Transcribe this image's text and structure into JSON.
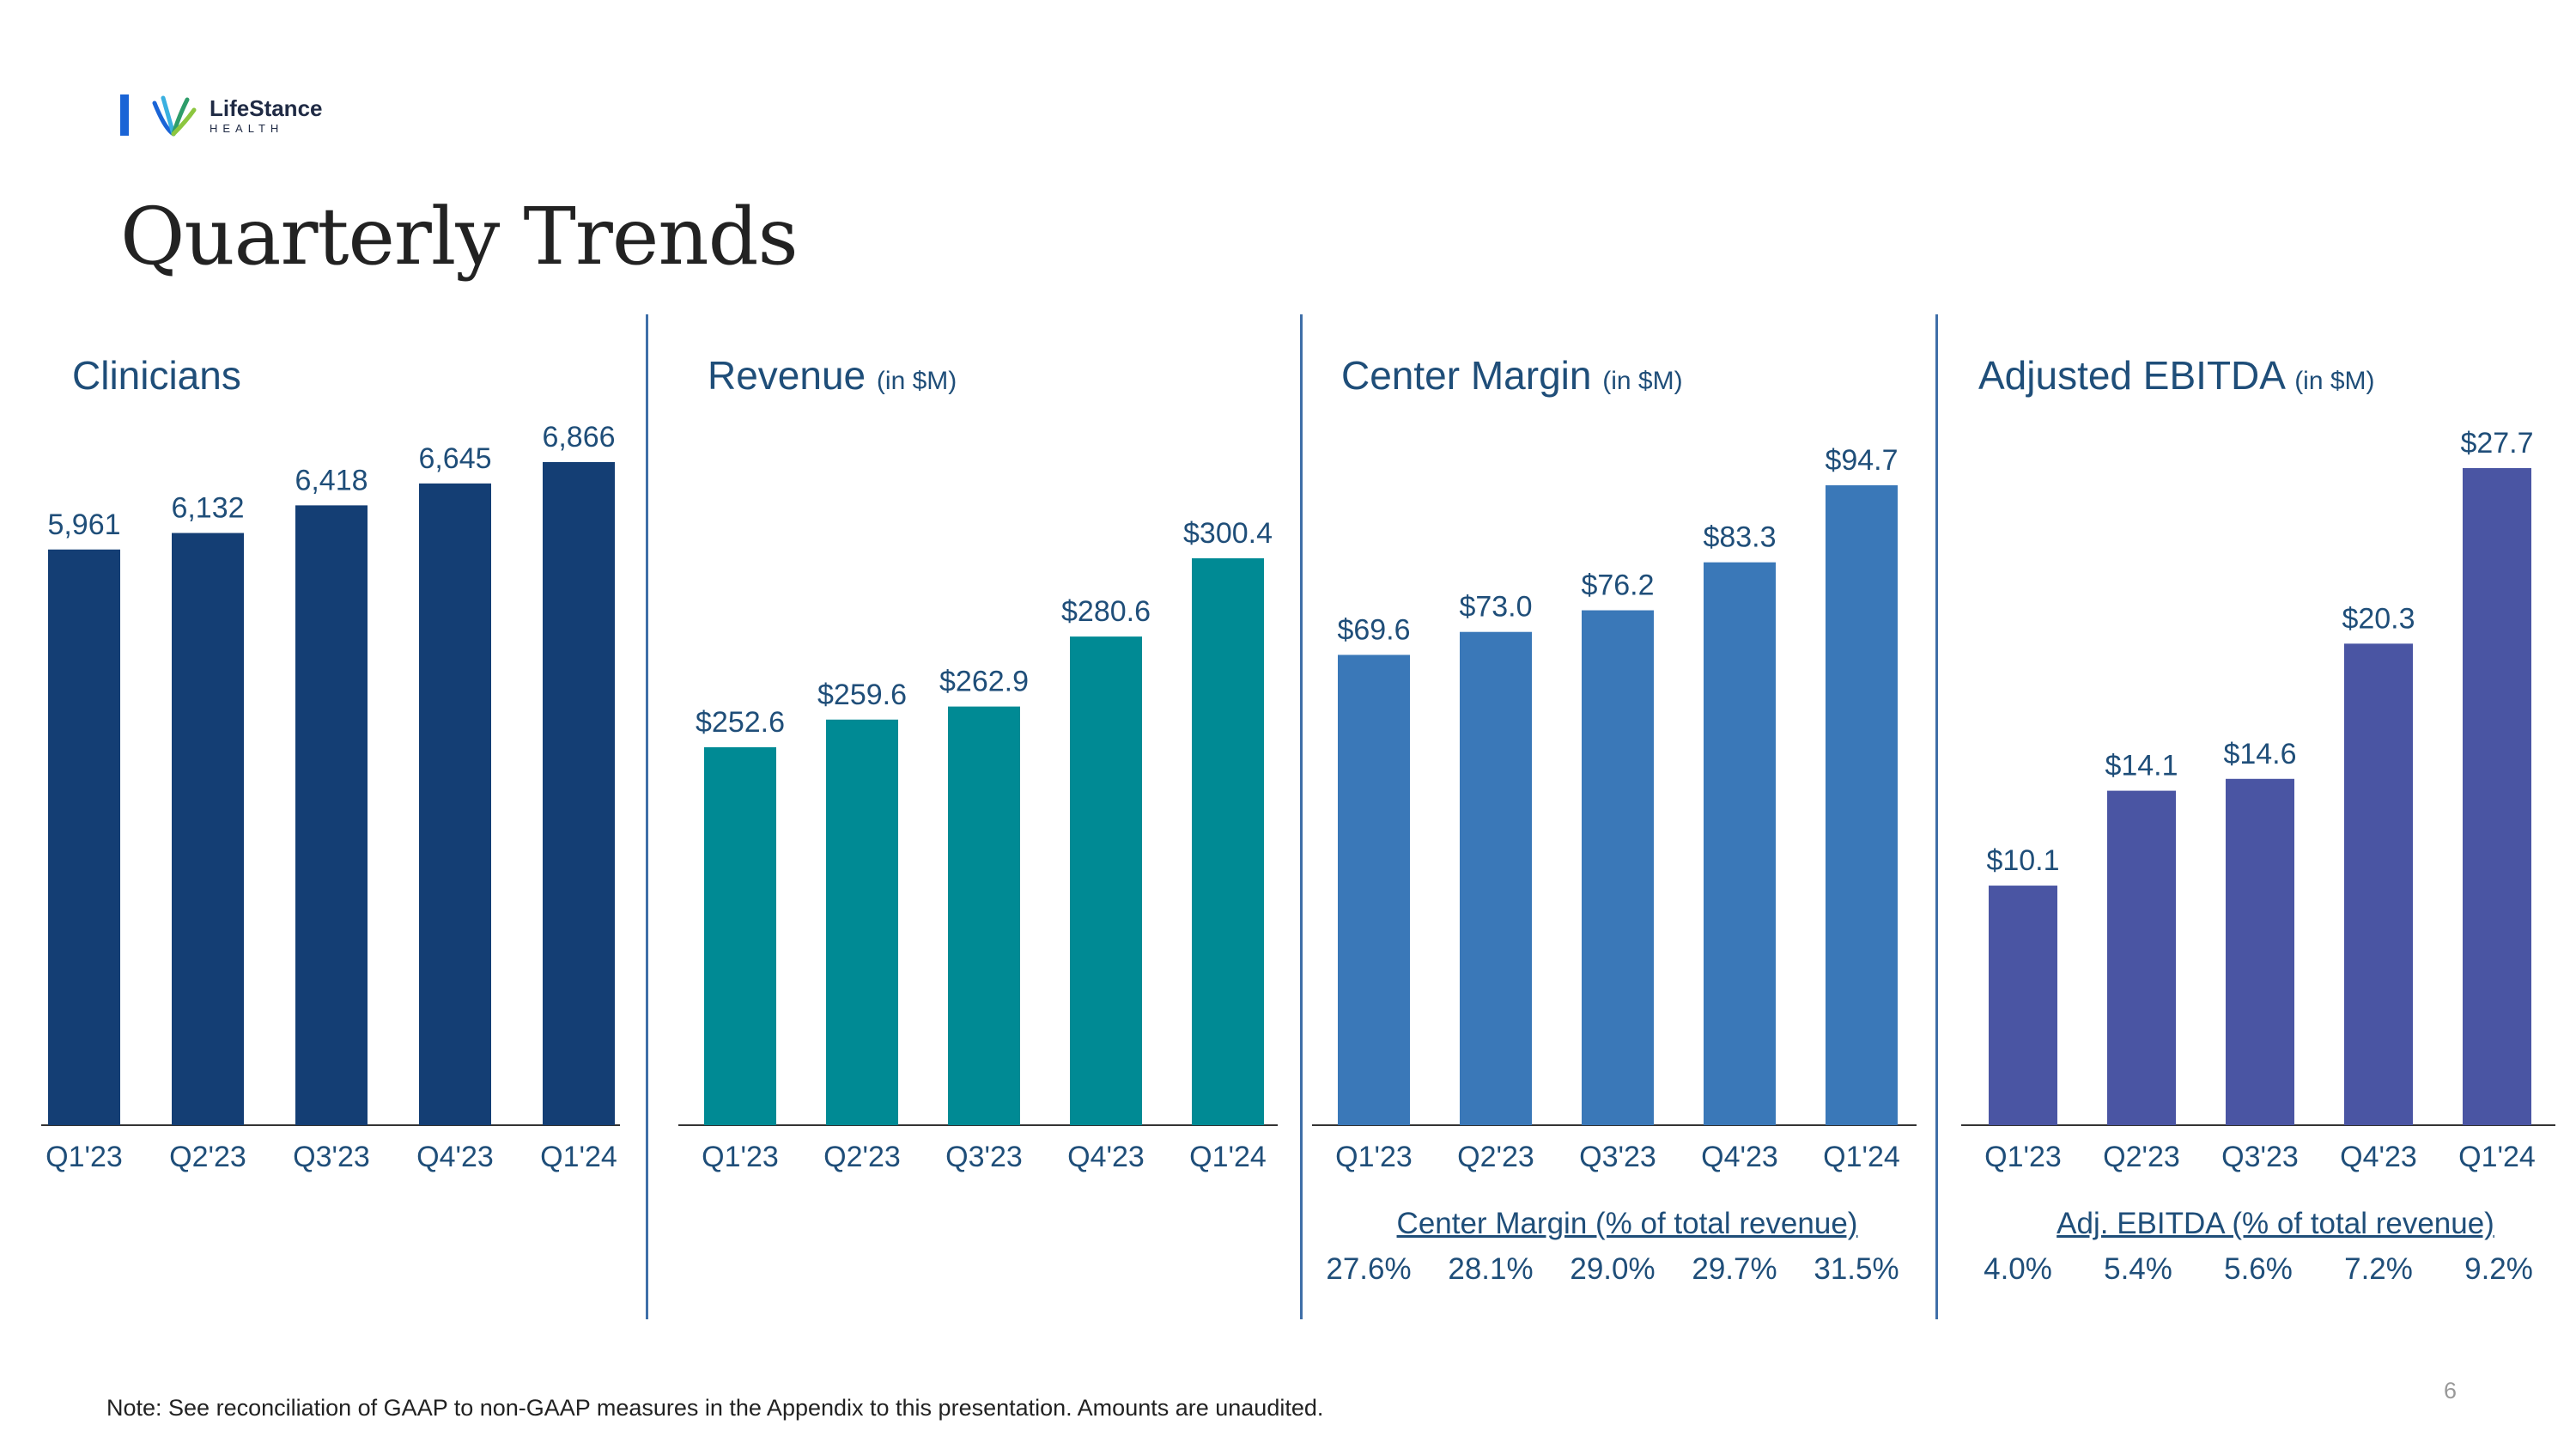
{
  "header": {
    "logo_name": "LifeStance",
    "logo_sub": "HEALTH",
    "title": "Quarterly Trends"
  },
  "footer": {
    "note": "Note:  See reconciliation of GAAP to non-GAAP measures in the Appendix to this presentation. Amounts are unaudited.",
    "page_number": "6"
  },
  "colors": {
    "clinicians": "#143e74",
    "revenue": "#008a94",
    "center_margin": "#3a78b8",
    "adj_ebitda": "#4a55a3",
    "text_blue": "#1f4e79",
    "axis": "#333333"
  },
  "panels": [
    {
      "title": "Clinicians",
      "unit": ""
    },
    {
      "title": "Revenue",
      "unit": "(in $M)"
    },
    {
      "title": "Center Margin",
      "unit": "(in $M)"
    },
    {
      "title": "Adjusted EBITDA",
      "unit": "(in $M)"
    }
  ],
  "metrics": [
    {
      "title": "Center Margin (% of total revenue)",
      "values": [
        "27.6%",
        "28.1%",
        "29.0%",
        "29.7%",
        "31.5%"
      ]
    },
    {
      "title": "Adj. EBITDA (% of total revenue)",
      "values": [
        "4.0%",
        "5.4%",
        "5.6%",
        "7.2%",
        "9.2%"
      ]
    }
  ],
  "chart_data": [
    {
      "type": "bar",
      "title": "Clinicians",
      "categories": [
        "Q1'23",
        "Q2'23",
        "Q3'23",
        "Q4'23",
        "Q1'24"
      ],
      "values": [
        5961,
        6132,
        6418,
        6645,
        6866
      ],
      "data_labels": [
        "5,961",
        "6,132",
        "6,418",
        "6,645",
        "6,866"
      ]
    },
    {
      "type": "bar",
      "title": "Revenue (in $M)",
      "categories": [
        "Q1'23",
        "Q2'23",
        "Q3'23",
        "Q4'23",
        "Q1'24"
      ],
      "values": [
        252.6,
        259.6,
        262.9,
        280.6,
        300.4
      ],
      "data_labels": [
        "$252.6",
        "$259.6",
        "$262.9",
        "$280.6",
        "$300.4"
      ]
    },
    {
      "type": "bar",
      "title": "Center Margin (in $M)",
      "categories": [
        "Q1'23",
        "Q2'23",
        "Q3'23",
        "Q4'23",
        "Q1'24"
      ],
      "values": [
        69.6,
        73.0,
        76.2,
        83.3,
        94.7
      ],
      "data_labels": [
        "$69.6",
        "$73.0",
        "$76.2",
        "$83.3",
        "$94.7"
      ]
    },
    {
      "type": "bar",
      "title": "Adjusted EBITDA (in $M)",
      "categories": [
        "Q1'23",
        "Q2'23",
        "Q3'23",
        "Q4'23",
        "Q1'24"
      ],
      "values": [
        10.1,
        14.1,
        14.6,
        20.3,
        27.7
      ],
      "data_labels": [
        "$10.1",
        "$14.1",
        "$14.6",
        "$20.3",
        "$27.7"
      ]
    }
  ]
}
